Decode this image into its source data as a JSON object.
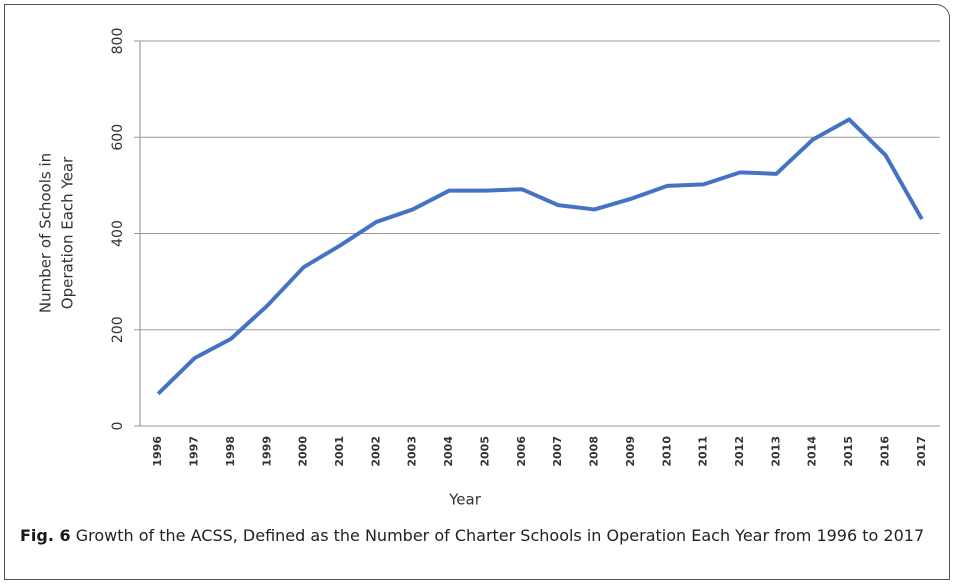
{
  "chart_data": {
    "type": "line",
    "ylabel": [
      "Number of Schools in",
      "Operation Each Year"
    ],
    "xlabel": "Year",
    "categories": [
      "1996",
      "1997",
      "1998",
      "1999",
      "2000",
      "2001",
      "2002",
      "2003",
      "2004",
      "2005",
      "2006",
      "2007",
      "2008",
      "2009",
      "2010",
      "2011",
      "2012",
      "2013",
      "2014",
      "2015",
      "2016",
      "2017"
    ],
    "series": [
      {
        "color": "#4472c4",
        "values": [
          67,
          141,
          181,
          250,
          330,
          375,
          424,
          450,
          489,
          489,
          492,
          459,
          450,
          472,
          499,
          502,
          527,
          524,
          595,
          637,
          563,
          430
        ]
      }
    ],
    "ylim": [
      0,
      800
    ],
    "yticks": [
      0,
      200,
      400,
      600,
      800
    ],
    "grid": true
  },
  "caption": {
    "label": "Fig. 6",
    "text": "Growth of the ACSS, Defined as the Number of Charter Schools in Operation Each Year from 1996 to 2017"
  }
}
